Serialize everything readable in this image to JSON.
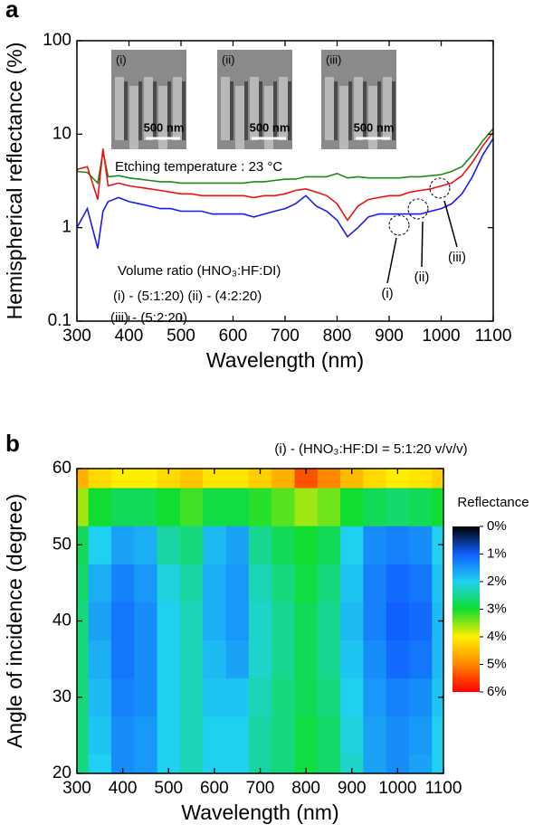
{
  "chart_data": [
    {
      "type": "line",
      "panel_label": "a",
      "ylabel": "Hemispherical reflectance (%)",
      "xlabel": "Wavelength (nm)",
      "log_y": true,
      "xlim": [
        300,
        1100
      ],
      "ylim": [
        0.1,
        100
      ],
      "xticks": [
        300,
        400,
        500,
        600,
        700,
        800,
        900,
        1000,
        1100
      ],
      "yticks": [
        0.1,
        1,
        10,
        100
      ],
      "x": [
        300,
        320,
        340,
        350,
        360,
        380,
        400,
        420,
        440,
        460,
        480,
        500,
        520,
        540,
        560,
        580,
        600,
        620,
        640,
        660,
        680,
        700,
        720,
        740,
        760,
        780,
        800,
        820,
        840,
        860,
        880,
        900,
        920,
        940,
        960,
        980,
        1000,
        1020,
        1040,
        1060,
        1080,
        1100
      ],
      "series": [
        {
          "name": "(iii)",
          "color": "#1a8a1a",
          "values": [
            4.0,
            3.9,
            3.0,
            6.5,
            3.5,
            3.6,
            3.4,
            3.3,
            3.2,
            3.1,
            3.1,
            3.0,
            3.0,
            3.0,
            3.0,
            3.0,
            3.0,
            3.0,
            3.1,
            3.1,
            3.2,
            3.3,
            3.3,
            3.5,
            3.5,
            3.5,
            3.8,
            3.4,
            3.5,
            3.4,
            3.4,
            3.4,
            3.4,
            3.5,
            3.5,
            3.6,
            3.7,
            4.0,
            4.5,
            6.0,
            8.5,
            11.5
          ]
        },
        {
          "name": "(ii)",
          "color": "#ee1111",
          "values": [
            4.2,
            4.5,
            2.0,
            7.0,
            2.8,
            3.0,
            2.8,
            2.7,
            2.6,
            2.5,
            2.4,
            2.3,
            2.3,
            2.2,
            2.2,
            2.2,
            2.2,
            2.2,
            2.1,
            2.2,
            2.2,
            2.3,
            2.5,
            2.6,
            2.4,
            2.2,
            1.8,
            1.2,
            1.7,
            2.0,
            2.1,
            2.2,
            2.2,
            2.4,
            2.5,
            2.6,
            2.8,
            3.0,
            3.6,
            5.0,
            7.5,
            10.5
          ]
        },
        {
          "name": "(i)",
          "color": "#1a1aee",
          "values": [
            1.0,
            1.6,
            0.6,
            1.5,
            1.9,
            2.1,
            1.9,
            1.8,
            1.7,
            1.6,
            1.6,
            1.5,
            1.5,
            1.5,
            1.4,
            1.4,
            1.4,
            1.4,
            1.3,
            1.4,
            1.5,
            1.6,
            1.8,
            2.2,
            1.7,
            1.5,
            1.2,
            0.8,
            1.0,
            1.3,
            1.4,
            1.4,
            1.4,
            1.4,
            1.4,
            1.5,
            1.6,
            1.8,
            2.3,
            3.5,
            6.0,
            9.0
          ]
        }
      ],
      "insets": [
        {
          "label": "(i)",
          "scale": "500 nm"
        },
        {
          "label": "(ii)",
          "scale": "500 nm"
        },
        {
          "label": "(iii)",
          "scale": "500 nm"
        }
      ],
      "annotations": [
        "Etching temperature : 23 °C",
        "Volume ratio (HNO₃:HF:DI)",
        "(i)   - (5:1:20)   (ii) - (4:2:20)",
        "(iii) - (5:2:20)"
      ]
    },
    {
      "type": "heatmap",
      "panel_label": "b",
      "title": "(i) - (HNO₃:HF:DI = 5:1:20 v/v/v)",
      "xlabel": "Wavelength (nm)",
      "ylabel": "Angle of incidence (degree)",
      "xlim": [
        300,
        1100
      ],
      "ylim": [
        20,
        60
      ],
      "xticks": [
        300,
        400,
        500,
        600,
        700,
        800,
        900,
        1000,
        1100
      ],
      "yticks": [
        20,
        30,
        40,
        50,
        60
      ],
      "x": [
        300,
        350,
        400,
        450,
        500,
        550,
        600,
        650,
        700,
        750,
        800,
        850,
        900,
        950,
        1000,
        1050,
        1100
      ],
      "y": [
        20,
        25,
        30,
        35,
        40,
        45,
        50,
        55,
        60
      ],
      "z": [
        [
          2.6,
          2.0,
          1.4,
          1.5,
          2.0,
          2.3,
          2.0,
          2.0,
          2.4,
          2.6,
          2.9,
          2.7,
          2.2,
          1.6,
          1.4,
          1.6,
          2.0
        ],
        [
          2.6,
          1.9,
          1.4,
          1.5,
          2.0,
          2.3,
          2.0,
          2.0,
          2.4,
          2.6,
          2.9,
          2.7,
          2.1,
          1.6,
          1.4,
          1.5,
          2.0
        ],
        [
          2.6,
          1.8,
          1.3,
          1.4,
          2.0,
          2.3,
          1.9,
          1.9,
          2.3,
          2.6,
          2.8,
          2.6,
          2.0,
          1.5,
          1.3,
          1.4,
          1.9
        ],
        [
          2.6,
          1.7,
          1.2,
          1.4,
          2.0,
          2.3,
          1.8,
          1.6,
          2.2,
          2.5,
          2.8,
          2.5,
          1.9,
          1.4,
          1.1,
          1.2,
          1.8
        ],
        [
          2.6,
          1.6,
          1.2,
          1.4,
          2.0,
          2.3,
          1.7,
          1.5,
          2.2,
          2.5,
          2.8,
          2.5,
          1.8,
          1.3,
          1.0,
          1.1,
          1.8
        ],
        [
          2.7,
          1.7,
          1.3,
          1.5,
          2.1,
          2.4,
          1.7,
          1.5,
          2.3,
          2.6,
          2.9,
          2.6,
          1.9,
          1.3,
          1.1,
          1.2,
          1.9
        ],
        [
          2.8,
          2.0,
          1.6,
          1.7,
          2.4,
          2.6,
          1.8,
          1.6,
          2.5,
          2.8,
          3.0,
          2.8,
          2.0,
          1.4,
          1.3,
          1.4,
          2.0
        ],
        [
          3.6,
          3.0,
          2.8,
          2.8,
          3.0,
          3.2,
          2.9,
          2.9,
          3.1,
          3.3,
          3.6,
          3.4,
          3.0,
          2.8,
          2.7,
          2.8,
          3.0
        ],
        [
          4.6,
          4.2,
          4.0,
          4.0,
          4.2,
          4.4,
          4.1,
          4.1,
          4.3,
          4.6,
          5.4,
          5.0,
          4.5,
          4.2,
          4.0,
          4.1,
          4.3
        ]
      ],
      "colorbar_title": "Reflectance",
      "cticks": [
        {
          "value": 0,
          "label": "0%"
        },
        {
          "value": 1,
          "label": "1%"
        },
        {
          "value": 2,
          "label": "2%"
        },
        {
          "value": 3,
          "label": "3%"
        },
        {
          "value": 4,
          "label": "4%"
        },
        {
          "value": 5,
          "label": "5%"
        },
        {
          "value": 6,
          "label": "6%"
        }
      ],
      "colorscale": [
        "#000000",
        "#1060ff",
        "#20d0f0",
        "#10dd30",
        "#ffee00",
        "#ff8800",
        "#ff0000"
      ]
    }
  ]
}
